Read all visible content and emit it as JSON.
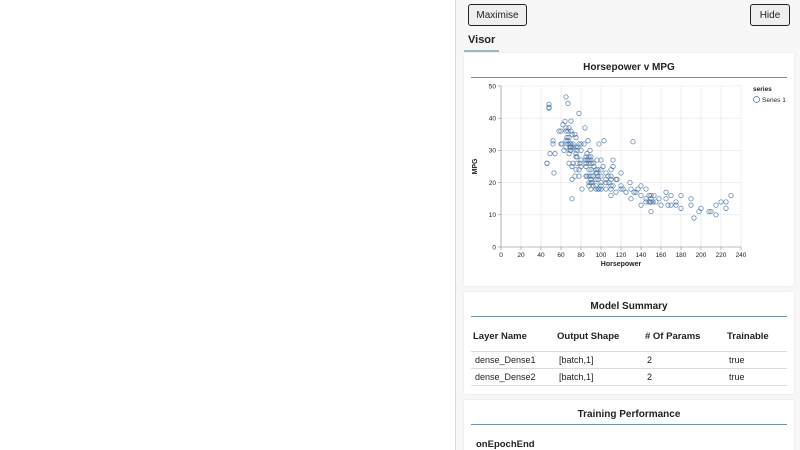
{
  "visor": {
    "maximise_label": "Maximise",
    "hide_label": "Hide",
    "tab_label": "Visor"
  },
  "chart_card": {
    "title": "Horsepower v MPG"
  },
  "chart_data": {
    "type": "scatter",
    "title": "Horsepower v MPG",
    "xlabel": "Horsepower",
    "ylabel": "MPG",
    "xlim": [
      0,
      240
    ],
    "ylim": [
      0,
      50
    ],
    "x_ticks": [
      0,
      20,
      40,
      60,
      80,
      100,
      120,
      140,
      160,
      180,
      200,
      220,
      240
    ],
    "y_ticks": [
      0,
      10,
      20,
      30,
      40,
      50
    ],
    "grid": true,
    "legend": {
      "title": "series",
      "position": "right",
      "entries": [
        "Series 1"
      ]
    },
    "series": [
      {
        "name": "Series 1",
        "color": "#4c78a8",
        "points": [
          [
            46,
            26
          ],
          [
            46,
            26
          ],
          [
            48,
            43.1
          ],
          [
            48,
            44.3
          ],
          [
            48,
            43.4
          ],
          [
            49,
            29
          ],
          [
            52,
            33
          ],
          [
            52,
            32
          ],
          [
            53,
            23
          ],
          [
            54,
            29
          ],
          [
            58,
            36
          ],
          [
            60,
            36
          ],
          [
            60,
            32
          ],
          [
            61,
            32
          ],
          [
            62,
            38
          ],
          [
            63,
            30
          ],
          [
            64,
            39
          ],
          [
            65,
            46.6
          ],
          [
            65,
            37
          ],
          [
            65,
            31
          ],
          [
            65,
            36
          ],
          [
            65,
            33
          ],
          [
            66,
            34
          ],
          [
            67,
            44.6
          ],
          [
            67,
            33
          ],
          [
            67,
            36
          ],
          [
            67,
            32
          ],
          [
            68,
            29
          ],
          [
            68,
            37
          ],
          [
            68,
            26
          ],
          [
            68,
            34
          ],
          [
            69,
            31
          ],
          [
            69,
            32
          ],
          [
            69,
            30
          ],
          [
            70,
            36
          ],
          [
            70,
            31
          ],
          [
            70,
            39.1
          ],
          [
            70,
            32
          ],
          [
            70,
            30
          ],
          [
            71,
            35
          ],
          [
            71,
            21
          ],
          [
            71,
            25
          ],
          [
            71,
            15
          ],
          [
            72,
            32
          ],
          [
            72,
            31
          ],
          [
            72,
            26
          ],
          [
            74,
            35
          ],
          [
            74,
            22
          ],
          [
            75,
            34
          ],
          [
            75,
            28
          ],
          [
            75,
            24
          ],
          [
            75,
            29
          ],
          [
            75,
            31
          ],
          [
            76,
            26
          ],
          [
            76,
            30
          ],
          [
            76,
            28
          ],
          [
            77,
            31
          ],
          [
            78,
            41.5
          ],
          [
            78,
            32
          ],
          [
            78,
            24
          ],
          [
            78,
            22
          ],
          [
            79,
            26
          ],
          [
            80,
            30
          ],
          [
            80,
            27
          ],
          [
            80,
            32
          ],
          [
            80,
            25
          ],
          [
            81,
            18
          ],
          [
            83,
            32
          ],
          [
            84,
            27
          ],
          [
            84,
            37
          ],
          [
            85,
            28
          ],
          [
            85,
            26
          ],
          [
            85,
            22
          ],
          [
            85,
            25
          ],
          [
            86,
            22
          ],
          [
            86,
            27
          ],
          [
            86,
            29
          ],
          [
            87,
            33
          ],
          [
            88,
            20
          ],
          [
            88,
            28
          ],
          [
            88,
            24
          ],
          [
            88,
            27
          ],
          [
            88,
            19
          ],
          [
            88,
            22
          ],
          [
            88,
            26
          ],
          [
            89,
            30
          ],
          [
            90,
            27
          ],
          [
            90,
            24
          ],
          [
            90,
            21
          ],
          [
            90,
            20
          ],
          [
            90,
            28
          ],
          [
            90,
            22
          ],
          [
            90,
            18
          ],
          [
            90,
            26
          ],
          [
            91,
            20
          ],
          [
            92,
            19
          ],
          [
            92,
            26
          ],
          [
            92,
            22
          ],
          [
            93,
            25
          ],
          [
            95,
            24
          ],
          [
            95,
            18
          ],
          [
            95,
            19
          ],
          [
            95,
            21
          ],
          [
            95,
            23
          ],
          [
            96,
            27
          ],
          [
            96,
            23
          ],
          [
            97,
            24
          ],
          [
            97,
            18
          ],
          [
            97,
            21
          ],
          [
            97,
            22
          ],
          [
            98,
            32
          ],
          [
            98,
            18
          ],
          [
            100,
            19
          ],
          [
            100,
            22
          ],
          [
            100,
            18
          ],
          [
            100,
            24
          ],
          [
            100,
            20
          ],
          [
            100,
            27
          ],
          [
            102,
            25
          ],
          [
            103,
            33
          ],
          [
            105,
            23
          ],
          [
            105,
            21
          ],
          [
            105,
            18
          ],
          [
            105,
            20
          ],
          [
            107,
            22
          ],
          [
            108,
            20
          ],
          [
            110,
            18
          ],
          [
            110,
            19
          ],
          [
            110,
            22
          ],
          [
            110,
            21
          ],
          [
            110,
            16
          ],
          [
            110,
            24
          ],
          [
            112,
            27
          ],
          [
            112,
            19
          ],
          [
            112,
            25
          ],
          [
            115,
            21
          ],
          [
            115,
            17
          ],
          [
            116,
            21
          ],
          [
            120,
            18
          ],
          [
            120,
            23
          ],
          [
            120,
            19
          ],
          [
            122,
            18
          ],
          [
            125,
            17
          ],
          [
            129,
            20
          ],
          [
            130,
            18
          ],
          [
            130,
            15
          ],
          [
            132,
            32.7
          ],
          [
            133,
            17
          ],
          [
            135,
            17
          ],
          [
            137,
            18
          ],
          [
            140,
            16
          ],
          [
            140,
            19
          ],
          [
            140,
            13
          ],
          [
            145,
            18
          ],
          [
            145,
            14
          ],
          [
            145,
            15
          ],
          [
            148,
            16
          ],
          [
            148,
            14
          ],
          [
            149,
            14
          ],
          [
            150,
            15
          ],
          [
            150,
            16
          ],
          [
            150,
            14
          ],
          [
            150,
            11
          ],
          [
            152,
            14
          ],
          [
            153,
            16
          ],
          [
            155,
            14
          ],
          [
            158,
            15
          ],
          [
            160,
            13
          ],
          [
            165,
            15
          ],
          [
            165,
            17
          ],
          [
            167,
            13
          ],
          [
            170,
            16
          ],
          [
            170,
            13
          ],
          [
            175,
            14
          ],
          [
            175,
            13
          ],
          [
            180,
            16
          ],
          [
            180,
            12
          ],
          [
            190,
            15
          ],
          [
            190,
            13
          ],
          [
            193,
            9
          ],
          [
            198,
            11
          ],
          [
            200,
            12
          ],
          [
            208,
            11
          ],
          [
            210,
            11
          ],
          [
            215,
            13
          ],
          [
            215,
            10
          ],
          [
            220,
            14
          ],
          [
            225,
            14
          ],
          [
            225,
            12
          ],
          [
            230,
            16
          ]
        ]
      }
    ]
  },
  "model_summary": {
    "title": "Model Summary",
    "columns": [
      "Layer Name",
      "Output Shape",
      "# Of Params",
      "Trainable"
    ],
    "rows": [
      [
        "dense_Dense1",
        "[batch,1]",
        "2",
        "true"
      ],
      [
        "dense_Dense2",
        "[batch,1]",
        "2",
        "true"
      ]
    ]
  },
  "training": {
    "title": "Training Performance",
    "callback_label": "onEpochEnd"
  }
}
